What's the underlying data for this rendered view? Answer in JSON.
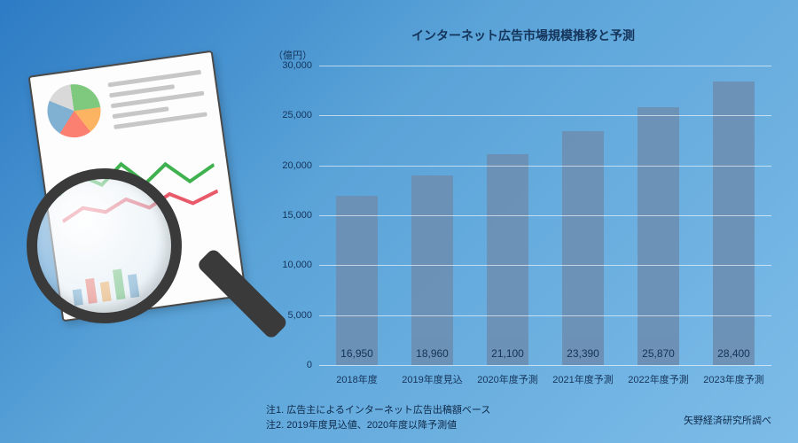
{
  "illustration": {
    "minibars": [
      {
        "h": 18,
        "c": "#80b1d3"
      },
      {
        "h": 28,
        "c": "#fb8072"
      },
      {
        "h": 22,
        "c": "#fdb462"
      },
      {
        "h": 34,
        "c": "#7fc97f"
      },
      {
        "h": 26,
        "c": "#80b1d3"
      }
    ]
  },
  "chart": {
    "type": "bar",
    "title": "インターネット広告市場規模推移と予測",
    "y_unit": "（億円）",
    "ylim": [
      0,
      30000
    ],
    "ytick_step": 5000,
    "yticks": [
      "0",
      "5,000",
      "10,000",
      "15,000",
      "20,000",
      "25,000",
      "30,000"
    ],
    "categories": [
      "2018年度",
      "2019年度見込",
      "2020年度予測",
      "2021年度予測",
      "2022年度予測",
      "2023年度予測"
    ],
    "values": [
      16950,
      18960,
      21100,
      23390,
      25870,
      28400
    ],
    "value_labels": [
      "16,950",
      "18,960",
      "21,100",
      "23,390",
      "25,870",
      "28,400"
    ],
    "bar_color": "#6d8fb3",
    "grid_color": "rgba(255,255,255,.6)",
    "text_color": "#15345a",
    "title_fontsize": 14,
    "label_fontsize": 11,
    "value_fontsize": 12,
    "bar_width": 0.56
  },
  "notes": {
    "line1": "注1. 広告主によるインターネット広告出稿額ベース",
    "line2": "注2. 2019年度見込値、2020年度以降予測値"
  },
  "source": "矢野経済研究所調べ"
}
